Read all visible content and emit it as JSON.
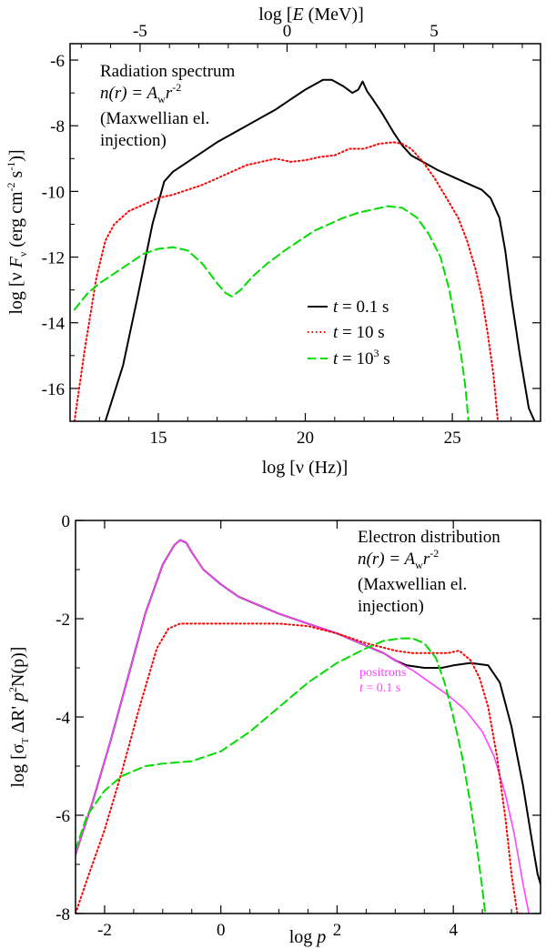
{
  "chart_data": [
    {
      "type": "line",
      "panel": "top",
      "annotation": [
        "Radiation spectrum",
        "n(r) = A",
        "w",
        "r",
        "-2",
        "(Maxwellian el.",
        "injection)"
      ],
      "xlabel": "log [ν (Hz)]",
      "ylabel": "log [ν Fν (erg cm⁻² s⁻¹)]",
      "ylabel_parts": [
        "log [ν ",
        "F",
        "ν",
        " (erg cm",
        "-2",
        " s",
        "-1",
        ")]"
      ],
      "top_xlabel": [
        "log [",
        "E",
        " (MeV)]"
      ],
      "xlim": [
        12,
        28
      ],
      "ylim": [
        -17,
        -5.5
      ],
      "xticks": [
        15,
        20,
        25
      ],
      "xtick_labels": [
        "15",
        "20",
        "25"
      ],
      "yticks": [
        -16,
        -14,
        -12,
        -10,
        -8,
        -6
      ],
      "ytick_labels": [
        "-16",
        "-14",
        "-12",
        "-10",
        "-8",
        "-6"
      ],
      "top_ticks_log_nu": [
        14.38,
        19.38,
        24.38
      ],
      "top_tick_labels": [
        "-5",
        "0",
        "5"
      ],
      "legend": [
        {
          "prefix": "t",
          "text": " = 0.1 s",
          "sup": ""
        },
        {
          "prefix": "t",
          "text": " = 10 s",
          "sup": ""
        },
        {
          "prefix": "t",
          "text": " = 10",
          "sup": "3",
          "suffix": " s"
        }
      ],
      "series": [
        {
          "name": "t = 0.1 s",
          "color": "#000000",
          "dash": "solid",
          "x": [
            13.2,
            13.8,
            14.3,
            14.8,
            15.2,
            15.5,
            16.0,
            17.0,
            18.0,
            19.0,
            19.5,
            20.0,
            20.6,
            20.9,
            21.3,
            21.6,
            21.8,
            21.95,
            22.1,
            22.3,
            22.6,
            23.0,
            23.3,
            23.6,
            24.0,
            24.5,
            25.0,
            25.5,
            26.0,
            26.3,
            26.6,
            26.8,
            27.0,
            27.3,
            27.6,
            27.8
          ],
          "y": [
            -17.0,
            -15.3,
            -13.2,
            -11.0,
            -9.7,
            -9.4,
            -9.1,
            -8.5,
            -8.0,
            -7.5,
            -7.2,
            -6.9,
            -6.6,
            -6.6,
            -6.8,
            -7.0,
            -6.9,
            -6.65,
            -6.95,
            -7.2,
            -7.6,
            -8.2,
            -8.6,
            -8.9,
            -9.1,
            -9.35,
            -9.55,
            -9.75,
            -9.95,
            -10.2,
            -10.8,
            -11.8,
            -13.2,
            -15.0,
            -16.6,
            -17.0
          ],
          "width": 2.0
        },
        {
          "name": "t = 10 s",
          "color": "#ff0000",
          "dash": "dotted",
          "x": [
            12.15,
            12.5,
            12.9,
            13.2,
            13.5,
            14.0,
            14.5,
            15.0,
            15.5,
            16.0,
            16.5,
            17.0,
            17.5,
            18.0,
            18.5,
            19.0,
            19.5,
            20.0,
            20.5,
            21.0,
            21.5,
            22.0,
            22.5,
            23.0,
            23.3,
            23.6,
            24.0,
            24.4,
            24.8,
            25.2,
            25.5,
            25.8,
            26.0,
            26.2,
            26.4,
            26.55
          ],
          "y": [
            -17.0,
            -14.8,
            -12.6,
            -11.5,
            -11.0,
            -10.6,
            -10.4,
            -10.2,
            -10.1,
            -9.95,
            -9.8,
            -9.6,
            -9.4,
            -9.2,
            -9.1,
            -9.0,
            -9.1,
            -9.05,
            -8.95,
            -8.9,
            -8.7,
            -8.7,
            -8.55,
            -8.5,
            -8.55,
            -8.7,
            -9.1,
            -9.6,
            -10.2,
            -10.8,
            -11.5,
            -12.4,
            -13.2,
            -14.3,
            -15.6,
            -17.0
          ],
          "width": 2.0
        },
        {
          "name": "t = 10^3 s",
          "color": "#00dd00",
          "dash": "dashed",
          "x": [
            12.15,
            12.6,
            13.0,
            13.5,
            14.0,
            14.5,
            15.0,
            15.5,
            16.0,
            16.5,
            17.0,
            17.3,
            17.5,
            17.8,
            18.2,
            18.7,
            19.3,
            19.8,
            20.3,
            20.8,
            21.3,
            21.8,
            22.3,
            22.8,
            23.3,
            23.8,
            24.2,
            24.6,
            24.9,
            25.1,
            25.3,
            25.45,
            25.55
          ],
          "y": [
            -13.6,
            -13.1,
            -12.8,
            -12.5,
            -12.2,
            -11.9,
            -11.75,
            -11.7,
            -11.8,
            -12.2,
            -12.8,
            -13.1,
            -13.2,
            -13.0,
            -12.6,
            -12.2,
            -11.8,
            -11.5,
            -11.2,
            -11.0,
            -10.8,
            -10.65,
            -10.55,
            -10.45,
            -10.5,
            -10.8,
            -11.3,
            -12.0,
            -13.0,
            -14.0,
            -15.0,
            -16.0,
            -17.0
          ],
          "width": 2.0
        }
      ]
    },
    {
      "type": "line",
      "panel": "bottom",
      "annotation": [
        "Electron distribution",
        "n(r) = A",
        "w",
        "r",
        "-2",
        "(Maxwellian el.",
        "injection)"
      ],
      "xlabel_parts": [
        "log  ",
        "p"
      ],
      "ylabel_parts": [
        "log [σ",
        "T",
        " ΔR' ",
        "p",
        "2",
        "N(p)]"
      ],
      "xlim": [
        -2.5,
        5.5
      ],
      "ylim": [
        -8,
        0
      ],
      "xticks": [
        -2,
        0,
        2,
        4
      ],
      "xtick_labels": [
        "-2",
        "0",
        "2",
        "4"
      ],
      "yticks": [
        -8,
        -6,
        -4,
        -2,
        0
      ],
      "ytick_labels": [
        "-8",
        "-6",
        "-4",
        "-2",
        "0"
      ],
      "positron_label": [
        "positrons",
        "t",
        " = 0.1 s"
      ],
      "series": [
        {
          "name": "t = 0.1 s",
          "color": "#000000",
          "dash": "solid",
          "x": [
            -2.5,
            -2.2,
            -1.9,
            -1.6,
            -1.3,
            -1.0,
            -0.8,
            -0.7,
            -0.6,
            -0.5,
            -0.3,
            0.0,
            0.3,
            0.6,
            1.0,
            1.5,
            2.0,
            2.5,
            2.8,
            3.0,
            3.2,
            3.5,
            3.8,
            4.0,
            4.3,
            4.6,
            4.8,
            5.0,
            5.2,
            5.35,
            5.45,
            5.5
          ],
          "y": [
            -6.8,
            -5.7,
            -4.5,
            -3.2,
            -1.9,
            -0.9,
            -0.5,
            -0.4,
            -0.45,
            -0.65,
            -1.0,
            -1.3,
            -1.55,
            -1.7,
            -1.9,
            -2.1,
            -2.3,
            -2.55,
            -2.7,
            -2.85,
            -2.95,
            -3.0,
            -3.0,
            -2.95,
            -2.9,
            -2.95,
            -3.3,
            -4.2,
            -5.4,
            -6.5,
            -7.2,
            -7.4
          ],
          "width": 2.0
        },
        {
          "name": "positrons t = 0.1 s",
          "color": "#ff44ff",
          "dash": "solid",
          "x": [
            -2.5,
            -2.2,
            -1.9,
            -1.6,
            -1.3,
            -1.0,
            -0.8,
            -0.7,
            -0.6,
            -0.5,
            -0.3,
            0.0,
            0.3,
            0.6,
            1.0,
            1.5,
            2.0,
            2.5,
            2.8,
            3.0,
            3.3,
            3.6,
            3.9,
            4.2,
            4.5,
            4.7,
            4.9,
            5.05,
            5.2,
            5.3
          ],
          "y": [
            -6.8,
            -5.7,
            -4.5,
            -3.2,
            -1.9,
            -0.9,
            -0.5,
            -0.4,
            -0.45,
            -0.65,
            -1.0,
            -1.3,
            -1.55,
            -1.7,
            -1.9,
            -2.1,
            -2.3,
            -2.55,
            -2.7,
            -2.85,
            -3.05,
            -3.3,
            -3.55,
            -3.85,
            -4.3,
            -4.8,
            -5.6,
            -6.4,
            -7.4,
            -8.0
          ],
          "width": 1.6
        },
        {
          "name": "t = 10 s",
          "color": "#ff0000",
          "dash": "dotted",
          "x": [
            -2.5,
            -2.3,
            -2.0,
            -1.7,
            -1.4,
            -1.1,
            -0.9,
            -0.7,
            -0.4,
            0.0,
            0.5,
            1.0,
            1.5,
            2.0,
            2.5,
            3.0,
            3.3,
            3.6,
            3.9,
            4.1,
            4.3,
            4.45,
            4.6,
            4.75,
            4.9,
            5.0,
            5.1
          ],
          "y": [
            -8.0,
            -7.3,
            -6.3,
            -5.1,
            -3.8,
            -2.6,
            -2.2,
            -2.1,
            -2.1,
            -2.1,
            -2.1,
            -2.1,
            -2.15,
            -2.3,
            -2.5,
            -2.65,
            -2.7,
            -2.7,
            -2.7,
            -2.65,
            -2.85,
            -3.2,
            -3.8,
            -4.8,
            -6.1,
            -7.2,
            -8.0
          ],
          "width": 2.0
        },
        {
          "name": "t = 10^3 s",
          "color": "#00dd00",
          "dash": "dashed",
          "x": [
            -2.5,
            -2.3,
            -2.0,
            -1.7,
            -1.3,
            -1.0,
            -0.5,
            0.0,
            0.5,
            1.0,
            1.5,
            2.0,
            2.5,
            2.8,
            3.1,
            3.3,
            3.5,
            3.7,
            3.85,
            4.0,
            4.15,
            4.3,
            4.4,
            4.5,
            4.55
          ],
          "y": [
            -6.7,
            -6.0,
            -5.5,
            -5.2,
            -5.0,
            -4.95,
            -4.9,
            -4.7,
            -4.3,
            -3.8,
            -3.3,
            -2.9,
            -2.6,
            -2.45,
            -2.4,
            -2.4,
            -2.5,
            -2.8,
            -3.3,
            -4.0,
            -4.8,
            -5.8,
            -6.6,
            -7.5,
            -8.0
          ],
          "width": 2.0
        }
      ]
    }
  ]
}
